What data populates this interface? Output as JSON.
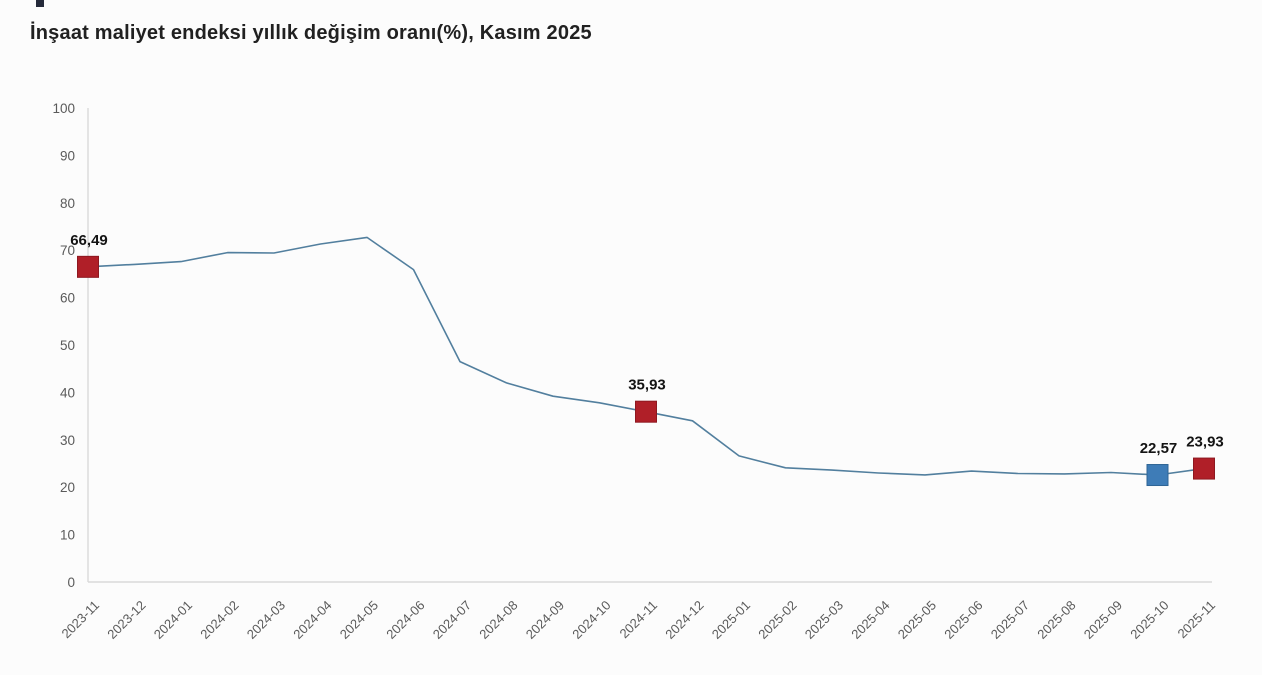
{
  "page": {
    "title": "İnşaat maliyet endeksi yıllık değişim oranı(%), Kasım 2025"
  },
  "chart_data": {
    "type": "line",
    "title": "İnşaat maliyet endeksi yıllık değişim oranı(%), Kasım 2025",
    "xlabel": "",
    "ylabel": "",
    "ylim": [
      0,
      100
    ],
    "yticks": [
      0,
      10,
      20,
      30,
      40,
      50,
      60,
      70,
      80,
      90,
      100
    ],
    "grid": false,
    "legend": "none",
    "x": [
      "2023-11",
      "2023-12",
      "2024-01",
      "2024-02",
      "2024-03",
      "2024-04",
      "2024-05",
      "2024-06",
      "2024-07",
      "2024-08",
      "2024-09",
      "2024-10",
      "2024-11",
      "2024-12",
      "2025-01",
      "2025-02",
      "2025-03",
      "2025-04",
      "2025-05",
      "2025-06",
      "2025-07",
      "2025-08",
      "2025-09",
      "2025-10",
      "2025-11"
    ],
    "values": [
      66.49,
      67.0,
      67.6,
      69.5,
      69.4,
      71.3,
      72.7,
      65.9,
      46.5,
      42.0,
      39.2,
      37.8,
      35.93,
      34.0,
      26.6,
      24.1,
      23.6,
      23.0,
      22.6,
      23.4,
      22.9,
      22.8,
      23.1,
      22.57,
      23.93
    ],
    "highlights": [
      {
        "x": "2023-11",
        "index": 0,
        "value": 66.49,
        "label": "66,49",
        "color": "#b01f28",
        "border": "#8e1820"
      },
      {
        "x": "2024-11",
        "index": 12,
        "value": 35.93,
        "label": "35,93",
        "color": "#b01f28",
        "border": "#8e1820"
      },
      {
        "x": "2025-10",
        "index": 23,
        "value": 22.57,
        "label": "22,57",
        "color": "#3e7cb7",
        "border": "#2f6595"
      },
      {
        "x": "2025-11",
        "index": 24,
        "value": 23.93,
        "label": "23,93",
        "color": "#b01f28",
        "border": "#8e1820"
      }
    ],
    "colors": {
      "line": "#527f9e",
      "axis": "#d9d9d9",
      "tick_label": "#5a5a5a",
      "data_label": "#141414",
      "title": "#212121",
      "background": "#fcfcfc"
    }
  }
}
